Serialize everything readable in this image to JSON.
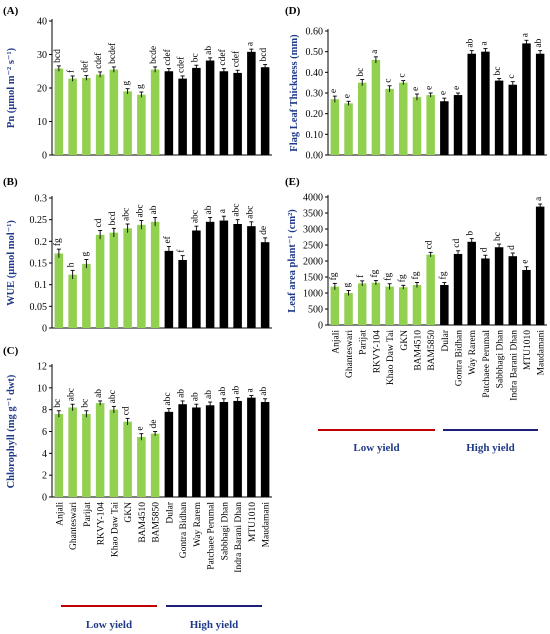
{
  "groups": {
    "low": {
      "label": "Low yield",
      "color": "#c00000"
    },
    "high": {
      "label": "High yield",
      "color": "#1f1f7a"
    }
  },
  "colors": {
    "low_bar": "#92d050",
    "high_bar": "#000000"
  },
  "chart_data": [
    {
      "panel": "(A)",
      "type": "bar",
      "ylabel": "Pn (μmol m⁻² s⁻¹)",
      "ylim": [
        0,
        40
      ],
      "yticks": [
        0,
        10,
        20,
        30,
        40
      ],
      "categories": [
        "Anjali",
        "Ghanteswari",
        "Parijat",
        "RKVY-104",
        "Khao Daw Tai",
        "GKN",
        "BAM4510",
        "BAM5850",
        "Dular",
        "Gontra Bidhan",
        "Way Rarem",
        "Patchaee Perumal",
        "Sabbhagi Dhan",
        "Indra Barani Dhan",
        "MTU1010",
        "Maudamani"
      ],
      "values": [
        25.8,
        22.8,
        23.0,
        24.0,
        25.5,
        19.0,
        18.0,
        25.5,
        25.0,
        22.8,
        26.0,
        28.2,
        25.0,
        24.5,
        30.8,
        26.2
      ],
      "errors": [
        0.8,
        0.8,
        0.7,
        0.8,
        0.8,
        0.8,
        0.8,
        0.8,
        0.8,
        0.8,
        0.8,
        0.8,
        0.8,
        0.8,
        0.8,
        0.8
      ],
      "letters": [
        "bcd",
        "f",
        "def",
        "cdef",
        "bcdef",
        "g",
        "g",
        "bcde",
        "cdef",
        "cdef",
        "bc",
        "ab",
        "cdef",
        "cdef",
        "a",
        "bcd"
      ]
    },
    {
      "panel": "(B)",
      "type": "bar",
      "ylabel": "WUE (μmol mol⁻¹)",
      "ylim": [
        0,
        0.3
      ],
      "yticks": [
        0,
        0.05,
        0.1,
        0.15,
        0.2,
        0.25,
        0.3
      ],
      "categories": [
        "Anjali",
        "Ghanteswari",
        "Parijat",
        "RKVY-104",
        "Khao Daw Tai",
        "GKN",
        "BAM4510",
        "BAM5850",
        "Dular",
        "Gontra Bidhan",
        "Way Rarem",
        "Patchaee Perumal",
        "Sabbhagi Dhan",
        "Indra Barani Dhan",
        "MTU1010",
        "Maudamani"
      ],
      "values": [
        0.172,
        0.123,
        0.148,
        0.215,
        0.22,
        0.23,
        0.238,
        0.245,
        0.178,
        0.157,
        0.225,
        0.245,
        0.248,
        0.24,
        0.235,
        0.198
      ],
      "errors": [
        0.01,
        0.01,
        0.01,
        0.01,
        0.01,
        0.01,
        0.01,
        0.01,
        0.01,
        0.01,
        0.01,
        0.01,
        0.01,
        0.01,
        0.01,
        0.01
      ],
      "letters": [
        "fg",
        "h",
        "g",
        "cd",
        "bcd",
        "abc",
        "abc",
        "ab",
        "ef",
        "f",
        "abc",
        "ab",
        "a",
        "abc",
        "abc",
        "de"
      ]
    },
    {
      "panel": "(C)",
      "type": "bar",
      "ylabel": "Chlorophyll (mg g⁻¹ dwt)",
      "ylim": [
        0,
        12
      ],
      "yticks": [
        0,
        2,
        4,
        6,
        8,
        10,
        12
      ],
      "categories": [
        "Anjali",
        "Ghanteswari",
        "Parijat",
        "RKVY-104",
        "Khao Daw Tai",
        "GKN",
        "BAM4510",
        "BAM5850",
        "Dular",
        "Gontra Bidhan",
        "Way Rarem",
        "Patchaee Perumal",
        "Sabbhagi Dhan",
        "Indra Barani Dhan",
        "MTU1010",
        "Maudamani"
      ],
      "values": [
        7.6,
        8.2,
        7.6,
        8.6,
        8.0,
        6.9,
        5.5,
        5.8,
        7.8,
        8.5,
        8.2,
        8.4,
        8.7,
        8.8,
        9.1,
        8.7
      ],
      "errors": [
        0.3,
        0.3,
        0.3,
        0.2,
        0.3,
        0.3,
        0.3,
        0.2,
        0.3,
        0.3,
        0.3,
        0.3,
        0.3,
        0.3,
        0.2,
        0.3
      ],
      "letters": [
        "bc",
        "abc",
        "bc",
        "ab",
        "abc",
        "cd",
        "e",
        "de",
        "abc",
        "ab",
        "ab",
        "ab",
        "ab",
        "ab",
        "a",
        "ab"
      ]
    },
    {
      "panel": "(D)",
      "type": "bar",
      "ylabel": "Flag Leaf Thickness (mm)",
      "ylim": [
        0,
        0.6
      ],
      "yticks": [
        0,
        0.1,
        0.2,
        0.3,
        0.4,
        0.5,
        0.6
      ],
      "yticklabels": [
        "0.00",
        "0.10",
        "0.20",
        "0.30",
        "0.40",
        "0.50",
        "0.60"
      ],
      "categories": [
        "Anjali",
        "Ghanteswari",
        "Parijat",
        "RKVY-104",
        "Khao Daw Tai",
        "GKN",
        "BAM4510",
        "BAM5850",
        "Dular",
        "Gontra Bidhan",
        "Way Rarem",
        "Patchaee Perumal",
        "Sabbhagi Dhan",
        "Indra Barani Dhan",
        "MTU1010",
        "Maudamani"
      ],
      "values": [
        0.27,
        0.25,
        0.35,
        0.46,
        0.32,
        0.35,
        0.28,
        0.29,
        0.26,
        0.29,
        0.49,
        0.5,
        0.36,
        0.34,
        0.54,
        0.49
      ],
      "errors": [
        0.015,
        0.01,
        0.015,
        0.015,
        0.015,
        0.01,
        0.015,
        0.01,
        0.015,
        0.01,
        0.015,
        0.015,
        0.01,
        0.015,
        0.015,
        0.015
      ],
      "letters": [
        "e",
        "e",
        "bc",
        "a",
        "c",
        "c",
        "e",
        "e",
        "e",
        "e",
        "ab",
        "a",
        "bc",
        "c",
        "a",
        "ab"
      ]
    },
    {
      "panel": "(E)",
      "type": "bar",
      "ylabel": "Leaf area plant⁻¹ (cm²)",
      "ylim": [
        0,
        4000
      ],
      "yticks": [
        0,
        500,
        1000,
        1500,
        2000,
        2500,
        3000,
        3500,
        4000
      ],
      "categories": [
        "Anjali",
        "Ghanteswari",
        "Parijat",
        "RKVY-104",
        "Khao Daw Tai",
        "GKN",
        "BAM4510",
        "BAM5850",
        "Dular",
        "Gontra Bidhan",
        "Way Rarem",
        "Patchaee Perumal",
        "Sabbhagi Dhan",
        "Indra Barani Dhan",
        "MTU1010",
        "Maudamani"
      ],
      "values": [
        1200,
        1000,
        1300,
        1320,
        1200,
        1180,
        1250,
        2200,
        1250,
        2220,
        2600,
        2080,
        2430,
        2150,
        1720,
        3700
      ],
      "errors": [
        100,
        80,
        80,
        70,
        90,
        60,
        80,
        70,
        80,
        100,
        100,
        100,
        100,
        100,
        100,
        80
      ],
      "letters": [
        "fg",
        "g",
        "f",
        "fg",
        "fg",
        "fg",
        "fg",
        "cd",
        "fg",
        "cd",
        "b",
        "d",
        "bc",
        "d",
        "e",
        "a"
      ]
    }
  ]
}
